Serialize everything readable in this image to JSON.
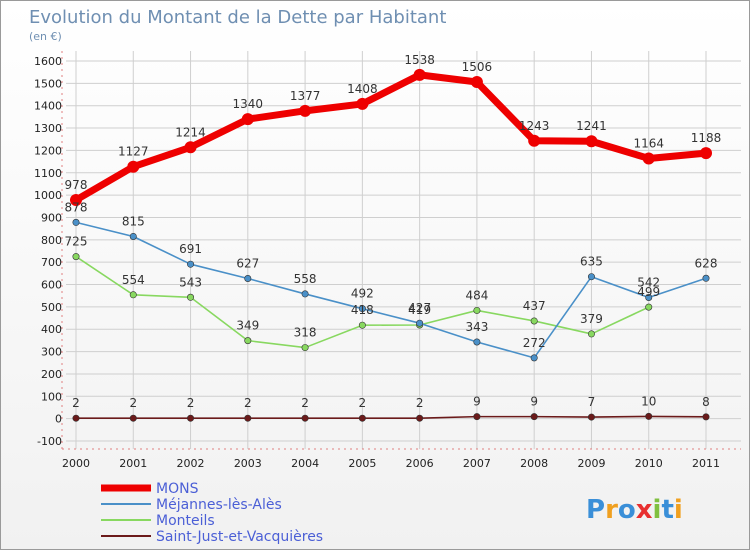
{
  "chart_data": {
    "type": "line",
    "title": "Evolution du Montant de la Dette par Habitant",
    "subtitle": "(en €)",
    "categories": [
      "2000",
      "2001",
      "2002",
      "2003",
      "2004",
      "2005",
      "2006",
      "2007",
      "2008",
      "2009",
      "2010",
      "2011"
    ],
    "ylim": [
      -100,
      1600
    ],
    "yticks": [
      -100,
      0,
      100,
      200,
      300,
      400,
      500,
      600,
      700,
      800,
      900,
      1000,
      1100,
      1200,
      1300,
      1400,
      1500,
      1600
    ],
    "grid": true,
    "legend_placement": "bottom-left",
    "series": [
      {
        "name": "MONS",
        "color": "#ee0000",
        "values": [
          978,
          1127,
          1214,
          1340,
          1377,
          1408,
          1538,
          1506,
          1243,
          1241,
          1164,
          1188
        ]
      },
      {
        "name": "Méjannes-lès-Alès",
        "color": "#4a90c8",
        "values": [
          878,
          815,
          691,
          627,
          558,
          492,
          427,
          343,
          272,
          635,
          542,
          628
        ]
      },
      {
        "name": "Monteils",
        "color": "#88d860",
        "values": [
          725,
          554,
          543,
          349,
          318,
          418,
          419,
          484,
          437,
          379,
          499,
          null
        ]
      },
      {
        "name": "Saint-Just-et-Vacquières",
        "color": "#6b1a1a",
        "values": [
          2,
          2,
          2,
          2,
          2,
          2,
          2,
          9,
          9,
          7,
          10,
          8
        ]
      }
    ]
  },
  "brand": {
    "logo_text": "Proxiti"
  }
}
